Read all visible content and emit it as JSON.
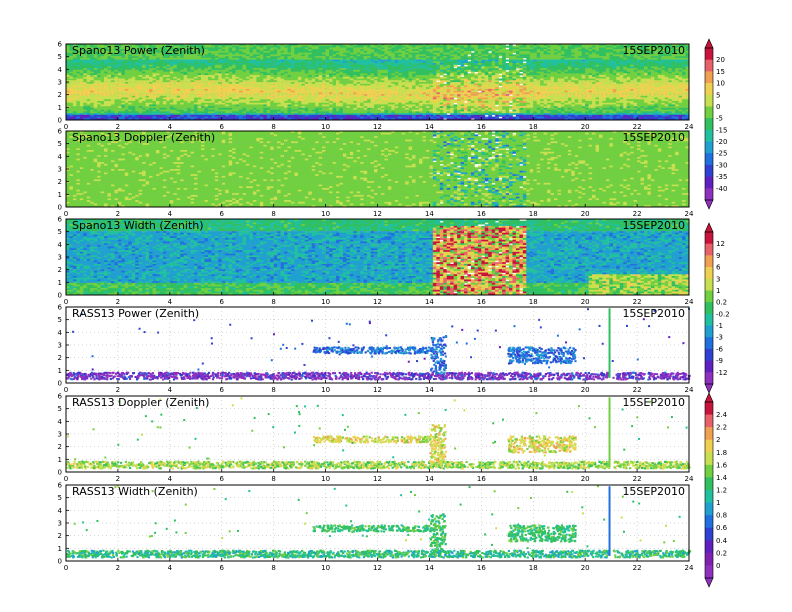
{
  "chart_data": [
    {
      "type": "heatmap",
      "title": "Spano13 Power (Zenith)",
      "date": "15SEP2010",
      "x_ticks": [
        "0",
        "2",
        "4",
        "6",
        "8",
        "10",
        "12",
        "14",
        "16",
        "18",
        "20",
        "22",
        "24"
      ],
      "y_ticks": [
        "0",
        "1",
        "2",
        "3",
        "4",
        "5",
        "6"
      ],
      "xlim": [
        0,
        24
      ],
      "ylim": [
        0,
        6
      ],
      "colorbar": "power",
      "grid": true
    },
    {
      "type": "heatmap",
      "title": "Spano13 Doppler (Zenith)",
      "date": "15SEP2010",
      "x_ticks": [
        "0",
        "2",
        "4",
        "6",
        "8",
        "10",
        "12",
        "14",
        "16",
        "18",
        "20",
        "22",
        "24"
      ],
      "y_ticks": [
        "0",
        "1",
        "2",
        "3",
        "4",
        "5",
        "6"
      ],
      "xlim": [
        0,
        24
      ],
      "ylim": [
        0,
        6
      ],
      "colorbar": "none",
      "grid": true
    },
    {
      "type": "heatmap",
      "title": "Spano13 Width (Zenith)",
      "date": "15SEP2010",
      "x_ticks": [
        "0",
        "2",
        "4",
        "6",
        "8",
        "10",
        "12",
        "14",
        "16",
        "18",
        "20",
        "22",
        "24"
      ],
      "y_ticks": [
        "0",
        "1",
        "2",
        "3",
        "4",
        "5",
        "6"
      ],
      "xlim": [
        0,
        24
      ],
      "ylim": [
        0,
        6
      ],
      "colorbar": "doppler",
      "grid": true
    },
    {
      "type": "scatter",
      "title": "RASS13 Power (Zenith)",
      "date": "15SEP2010",
      "x_ticks": [
        "0",
        "2",
        "4",
        "6",
        "8",
        "10",
        "12",
        "14",
        "16",
        "18",
        "20",
        "22",
        "24"
      ],
      "y_ticks": [
        "0",
        "1",
        "2",
        "3",
        "4",
        "5",
        "6"
      ],
      "xlim": [
        0,
        24
      ],
      "ylim": [
        0,
        6
      ],
      "colorbar": "none",
      "grid": true
    },
    {
      "type": "scatter",
      "title": "RASS13 Doppler (Zenith)",
      "date": "15SEP2010",
      "x_ticks": [
        "0",
        "2",
        "4",
        "6",
        "8",
        "10",
        "12",
        "14",
        "16",
        "18",
        "20",
        "22",
        "24"
      ],
      "y_ticks": [
        "0",
        "1",
        "2",
        "3",
        "4",
        "5",
        "6"
      ],
      "xlim": [
        0,
        24
      ],
      "ylim": [
        0,
        6
      ],
      "colorbar": "width",
      "grid": true
    },
    {
      "type": "scatter",
      "title": "RASS13 Width (Zenith)",
      "date": "15SEP2010",
      "x_ticks": [
        "0",
        "2",
        "4",
        "6",
        "8",
        "10",
        "12",
        "14",
        "16",
        "18",
        "20",
        "22",
        "24"
      ],
      "y_ticks": [
        "0",
        "1",
        "2",
        "3",
        "4",
        "5",
        "6"
      ],
      "xlim": [
        0,
        24
      ],
      "ylim": [
        0,
        6
      ],
      "colorbar": "none",
      "grid": true
    }
  ],
  "colorbars": {
    "power": {
      "labels": [
        "20",
        "15",
        "10",
        "5",
        "0",
        "-5",
        "-15",
        "-20",
        "-25",
        "-30",
        "-35",
        "-40"
      ],
      "colors": [
        "#c8143c",
        "#e8606a",
        "#f0a050",
        "#f0d050",
        "#c8e050",
        "#70d040",
        "#30c060",
        "#20c0a0",
        "#20a0d0",
        "#2070e0",
        "#3040d0",
        "#6020c0",
        "#9030c0"
      ]
    },
    "doppler": {
      "labels": [
        "12",
        "9",
        "6",
        "3",
        "1",
        "0.2",
        "-0.2",
        "-1",
        "-3",
        "-6",
        "-9",
        "-12"
      ],
      "colors": [
        "#c8143c",
        "#e8606a",
        "#f0a050",
        "#f0d050",
        "#c8e050",
        "#70d040",
        "#30c060",
        "#20c0a0",
        "#20a0d0",
        "#2070e0",
        "#3040d0",
        "#6020c0",
        "#9030c0"
      ]
    },
    "width": {
      "labels": [
        "2.4",
        "2.2",
        "2",
        "1.8",
        "1.6",
        "1.4",
        "1.2",
        "1",
        "0.8",
        "0.6",
        "0.4",
        "0.2",
        "0"
      ],
      "colors": [
        "#c8143c",
        "#e8606a",
        "#f0a050",
        "#f0d050",
        "#c8e050",
        "#70d040",
        "#30c060",
        "#20c0a0",
        "#20a0d0",
        "#2070e0",
        "#3040d0",
        "#6020c0",
        "#8020b0",
        "#9030c0"
      ]
    }
  }
}
